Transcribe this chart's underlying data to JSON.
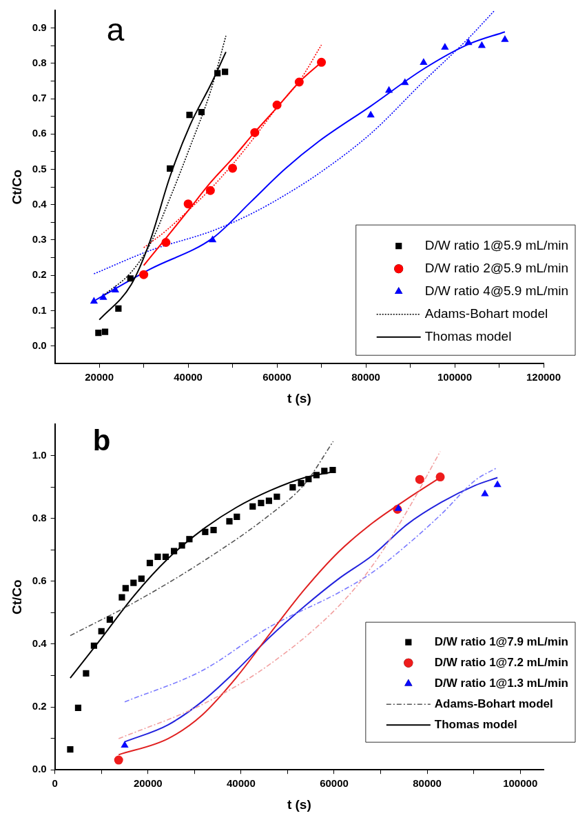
{
  "chart_data": [
    {
      "type": "scatter",
      "annotations": [
        "a"
      ],
      "xlabel": "t (s)",
      "ylabel": "Ct/Co",
      "legend": "bottom right",
      "xlim": [
        10000,
        120000
      ],
      "ylim": [
        -0.05,
        0.95
      ],
      "xticks": [
        20000,
        {
          "value": 30000,
          "label": null
        },
        40000,
        {
          "value": 50000,
          "label": null
        },
        60000,
        {
          "value": 70000,
          "label": null
        },
        80000,
        {
          "value": 90000,
          "label": null
        },
        100000,
        {
          "value": 110000,
          "label": null
        },
        120000
      ],
      "yticks": [
        {
          "value": 0,
          "label": "0.0"
        },
        {
          "value": 0.05,
          "label": null
        },
        {
          "value": 0.1,
          "label": "0.1"
        },
        {
          "value": 0.15,
          "label": null
        },
        {
          "value": 0.2,
          "label": "0.2"
        },
        {
          "value": 0.25,
          "label": null
        },
        {
          "value": 0.3,
          "label": "0.3"
        },
        {
          "value": 0.35,
          "label": null
        },
        {
          "value": 0.4,
          "label": "0.4"
        },
        {
          "value": 0.45,
          "label": null
        },
        {
          "value": 0.5,
          "label": "0.5"
        },
        {
          "value": 0.55,
          "label": null
        },
        {
          "value": 0.6,
          "label": "0.6"
        },
        {
          "value": 0.65,
          "label": null
        },
        {
          "value": 0.7,
          "label": "0.7"
        },
        {
          "value": 0.75,
          "label": null
        },
        {
          "value": 0.8,
          "label": "0.8"
        },
        {
          "value": 0.85,
          "label": null
        },
        {
          "value": 0.9,
          "label": "0.9"
        }
      ],
      "series": [
        {
          "name": "D/W ratio 1@5.9 mL/min",
          "type": "scatter",
          "marker": "square",
          "color": "#000000",
          "x": [
            19800,
            21300,
            24300,
            27000,
            35900,
            40300,
            43000,
            46600,
            48300
          ],
          "values": [
            0.037,
            0.04,
            0.106,
            0.191,
            0.502,
            0.654,
            0.662,
            0.772,
            0.776
          ]
        },
        {
          "name": "D/W ratio 2@5.9 mL/min",
          "type": "scatter",
          "marker": "circle",
          "color": "#ff0000",
          "x": [
            30000,
            35000,
            40000,
            45000,
            50000,
            55000,
            60000,
            65000,
            70000
          ],
          "values": [
            0.202,
            0.293,
            0.402,
            0.44,
            0.503,
            0.604,
            0.682,
            0.747,
            0.803
          ]
        },
        {
          "name": "D/W ratio 4@5.9 mL/min",
          "type": "scatter",
          "marker": "triangle",
          "color": "#0000ff",
          "x": [
            18800,
            20900,
            23600,
            45500,
            81100,
            85200,
            88800,
            93000,
            97800,
            103100,
            106100,
            111300
          ],
          "values": [
            0.126,
            0.137,
            0.158,
            0.3,
            0.653,
            0.723,
            0.745,
            0.802,
            0.845,
            0.858,
            0.85,
            0.867
          ]
        },
        {
          "name": "Adams-Bohart model",
          "type": "line",
          "marker": "none",
          "line_style": "dotted",
          "color": "#000000",
          "x": [
            20700,
            27200,
            31400,
            35900,
            40500,
            45100,
            48500
          ],
          "values": [
            0.141,
            0.209,
            0.287,
            0.418,
            0.566,
            0.723,
            0.878
          ]
        },
        {
          "name": "Thomas model",
          "type": "line",
          "marker": "none",
          "line_style": "solid",
          "color": "#000000",
          "x": [
            20000,
            27200,
            31400,
            35900,
            40500,
            45100,
            48500
          ],
          "values": [
            0.074,
            0.174,
            0.296,
            0.479,
            0.627,
            0.74,
            0.832
          ]
        },
        {
          "type": "line",
          "marker": "none",
          "line_style": "dotted",
          "color": "#ff0000",
          "x": [
            30000,
            35000,
            40000,
            45000,
            50000,
            55000,
            60000,
            65000,
            70000
          ],
          "values": [
            0.278,
            0.326,
            0.383,
            0.444,
            0.514,
            0.592,
            0.675,
            0.749,
            0.852
          ]
        },
        {
          "type": "line",
          "marker": "none",
          "line_style": "solid",
          "color": "#ff0000",
          "x": [
            30000,
            35000,
            40000,
            45000,
            50000,
            55000,
            60000,
            65000,
            70000
          ],
          "values": [
            0.228,
            0.305,
            0.383,
            0.462,
            0.531,
            0.605,
            0.675,
            0.747,
            0.803
          ]
        },
        {
          "type": "line",
          "marker": "none",
          "line_style": "dotted",
          "color": "#0000ff",
          "x": [
            18800,
            31400,
            45500,
            54200,
            61800,
            69400,
            81100,
            93000,
            103100,
            109000
          ],
          "values": [
            0.204,
            0.27,
            0.326,
            0.374,
            0.427,
            0.488,
            0.601,
            0.749,
            0.871,
            0.95
          ]
        },
        {
          "type": "line",
          "marker": "none",
          "line_style": "solid",
          "color": "#0000ff",
          "x": [
            19200,
            31400,
            45500,
            54200,
            61800,
            69400,
            81100,
            93000,
            103100,
            111300
          ],
          "values": [
            0.13,
            0.217,
            0.305,
            0.409,
            0.501,
            0.579,
            0.679,
            0.784,
            0.854,
            0.889
          ]
        }
      ]
    },
    {
      "type": "scatter",
      "annotations": [
        "b"
      ],
      "xlabel": "t (s)",
      "ylabel": "Ct/Co",
      "legend": "bottom right",
      "xlim": [
        0,
        105000
      ],
      "ylim": [
        0,
        1.1
      ],
      "xticks": [
        0,
        {
          "value": 10000,
          "label": null
        },
        20000,
        {
          "value": 30000,
          "label": null
        },
        40000,
        {
          "value": 50000,
          "label": null
        },
        60000,
        {
          "value": 70000,
          "label": null
        },
        80000,
        {
          "value": 90000,
          "label": null
        },
        100000
      ],
      "yticks": [
        {
          "value": 0,
          "label": "0.0"
        },
        {
          "value": 0.1,
          "label": null
        },
        {
          "value": 0.2,
          "label": "0.2"
        },
        {
          "value": 0.3,
          "label": null
        },
        {
          "value": 0.4,
          "label": "0.4"
        },
        {
          "value": 0.5,
          "label": null
        },
        {
          "value": 0.6,
          "label": "0.6"
        },
        {
          "value": 0.7,
          "label": null
        },
        {
          "value": 0.8,
          "label": "0.8"
        },
        {
          "value": 0.9,
          "label": null
        },
        {
          "value": 1,
          "label": "1.0"
        }
      ],
      "series": [
        {
          "name": "D/W ratio 1@7.9 mL/min",
          "type": "scatter",
          "marker": "square",
          "color": "#000000",
          "x": [
            3300,
            5000,
            6700,
            8400,
            10000,
            11800,
            14400,
            15200,
            16900,
            18600,
            20400,
            22100,
            23800,
            25600,
            27300,
            28900,
            32300,
            34100,
            37500,
            39100,
            42500,
            44300,
            46000,
            47700,
            51100,
            52900,
            54500,
            56200,
            57900,
            59700
          ],
          "values": [
            0.065,
            0.197,
            0.307,
            0.395,
            0.441,
            0.478,
            0.549,
            0.578,
            0.595,
            0.608,
            0.658,
            0.678,
            0.678,
            0.696,
            0.714,
            0.734,
            0.757,
            0.763,
            0.791,
            0.805,
            0.838,
            0.849,
            0.856,
            0.869,
            0.899,
            0.912,
            0.925,
            0.938,
            0.951,
            0.954
          ]
        },
        {
          "name": "D/W ratio 1@7.2 mL/min",
          "type": "scatter",
          "marker": "circle",
          "color": "#ee1c1c",
          "x": [
            13700,
            73600,
            78400,
            82800
          ],
          "values": [
            0.031,
            0.829,
            0.924,
            0.932
          ]
        },
        {
          "name": "D/W ratio 1@1.3 mL/min",
          "type": "scatter",
          "marker": "triangle",
          "color": "#0a0aff",
          "x": [
            15000,
            73800,
            92400,
            95100
          ],
          "values": [
            0.078,
            0.831,
            0.878,
            0.907
          ]
        },
        {
          "name": "Adams-Bohart model",
          "type": "line",
          "marker": "none",
          "line_style": "dashed",
          "color": "#555555",
          "x": [
            3300,
            17000,
            31700,
            46300,
            53700,
            59800
          ],
          "values": [
            0.427,
            0.532,
            0.662,
            0.813,
            0.91,
            1.045
          ]
        },
        {
          "name": "Thomas model",
          "type": "line",
          "marker": "none",
          "line_style": "solid",
          "color": "#000000",
          "x": [
            3300,
            9700,
            17000,
            24300,
            31700,
            39000,
            46300,
            53700,
            59800
          ],
          "values": [
            0.292,
            0.413,
            0.554,
            0.672,
            0.764,
            0.835,
            0.889,
            0.93,
            0.948
          ]
        },
        {
          "type": "line",
          "marker": "none",
          "line_style": "dashed",
          "color": "#f2a0a0",
          "x": [
            13700,
            31700,
            46300,
            61000,
            68300,
            75700,
            82800
          ],
          "values": [
            0.099,
            0.208,
            0.337,
            0.521,
            0.651,
            0.824,
            1.013
          ]
        },
        {
          "type": "line",
          "marker": "none",
          "line_style": "solid",
          "color": "#e02020",
          "x": [
            13700,
            24300,
            31700,
            39000,
            46300,
            53700,
            61000,
            68300,
            75700,
            82800
          ],
          "values": [
            0.048,
            0.099,
            0.175,
            0.294,
            0.435,
            0.575,
            0.694,
            0.786,
            0.862,
            0.93
          ]
        },
        {
          "type": "line",
          "marker": "none",
          "line_style": "dashed",
          "color": "#7a7aff",
          "x": [
            15000,
            31700,
            46300,
            61000,
            68300,
            75700,
            83000,
            90300,
            95100
          ],
          "values": [
            0.216,
            0.316,
            0.456,
            0.564,
            0.629,
            0.716,
            0.813,
            0.921,
            0.962
          ]
        },
        {
          "type": "line",
          "marker": "none",
          "line_style": "solid",
          "color": "#2222dd",
          "x": [
            15000,
            24300,
            31700,
            39000,
            46300,
            53700,
            61000,
            68300,
            75700,
            83000,
            90300,
            95100
          ],
          "values": [
            0.089,
            0.143,
            0.218,
            0.316,
            0.424,
            0.521,
            0.608,
            0.683,
            0.781,
            0.851,
            0.905,
            0.93
          ]
        }
      ]
    }
  ]
}
